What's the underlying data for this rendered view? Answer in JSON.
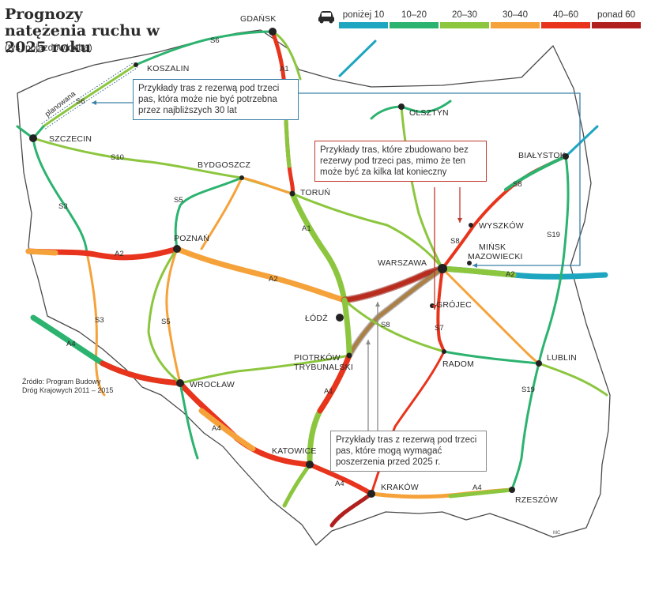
{
  "title": "Prognozy natężenia ruchu w 2025 roku",
  "subtitle": "(tys. pojazdów/doba)",
  "legend": {
    "icon": "car-icon",
    "items": [
      {
        "label": "poniżej 10",
        "color": "#1ea6c0"
      },
      {
        "label": "10–20",
        "color": "#2bb36f"
      },
      {
        "label": "20–30",
        "color": "#8cc63e"
      },
      {
        "label": "30–40",
        "color": "#f5a23a"
      },
      {
        "label": "40–60",
        "color": "#e8341c"
      },
      {
        "label": "ponad 60",
        "color": "#b0201f"
      }
    ]
  },
  "cities": [
    {
      "name": "GDAŃSK"
    },
    {
      "name": "KOSZALIN"
    },
    {
      "name": "SZCZECIN"
    },
    {
      "name": "OLSZTYN"
    },
    {
      "name": "BYDGOSZCZ"
    },
    {
      "name": "TORUŃ"
    },
    {
      "name": "BIAŁYSTOK"
    },
    {
      "name": "WYSZKÓW"
    },
    {
      "name": "POZNAŃ"
    },
    {
      "name": "MIŃSK"
    },
    {
      "name": "MAZOWIECKI"
    },
    {
      "name": "WARSZAWA"
    },
    {
      "name": "GRÓJEC"
    },
    {
      "name": "ŁÓDŹ"
    },
    {
      "name": "PIOTRKÓW"
    },
    {
      "name": "TRYBUNALSKI"
    },
    {
      "name": "RADOM"
    },
    {
      "name": "LUBLIN"
    },
    {
      "name": "WROCŁAW"
    },
    {
      "name": "KATOWICE"
    },
    {
      "name": "KRAKÓW"
    },
    {
      "name": "RZESZÓW"
    }
  ],
  "roads": [
    "S6",
    "A1",
    "S6",
    "S10",
    "S3",
    "S5",
    "A2",
    "A1",
    "A2",
    "S8",
    "S8",
    "S19",
    "S3",
    "S5",
    "A4",
    "S7",
    "S19",
    "A4",
    "A1",
    "A4",
    "A4",
    "A2",
    "S8"
  ],
  "planned_label": "planowana",
  "callouts": {
    "c1": "Przykłady tras z rezerwą pod trzeci pas, która może nie być potrzebna przez najbliższych 30 lat",
    "c2": "Przykłady tras, które zbudowano bez rezerwy pod trzeci pas, mimo że ten może być za kilka lat konieczny",
    "c3": "Przykłady tras z rezerwą pod trzeci pas, które mogą wymagać poszerzenia przed 2025 r."
  },
  "source": "Źródło: Program Budowy Dróg Krajowych 2011 – 2015",
  "author": "MC"
}
